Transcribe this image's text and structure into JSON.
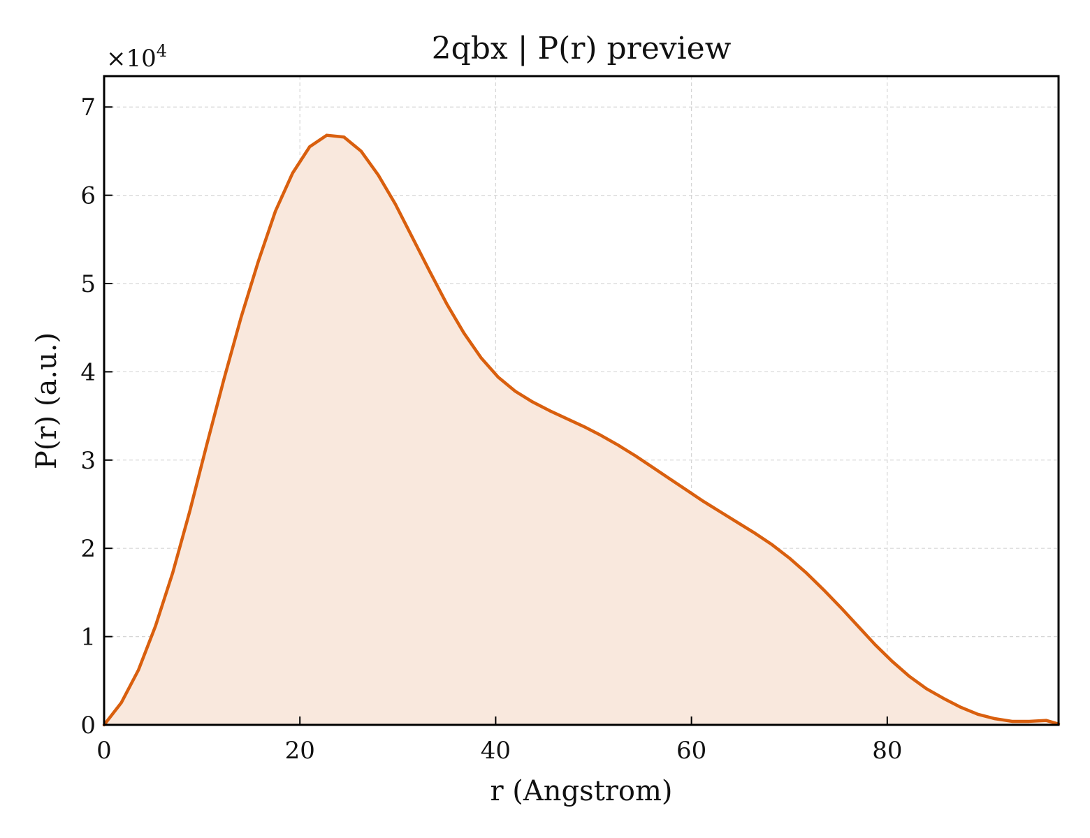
{
  "chart_data": {
    "type": "area",
    "title": "2qbx | P(r) preview",
    "xlabel": "r (Angstrom)",
    "ylabel": "P(r) (a.u.)",
    "y_multiplier": {
      "base": "×10",
      "exponent": "4"
    },
    "xlim": [
      0,
      97.5
    ],
    "ylim": [
      0,
      7.35
    ],
    "x_ticks": [
      0,
      20,
      40,
      60,
      80
    ],
    "x_tick_labels": [
      "0",
      "20",
      "40",
      "60",
      "80"
    ],
    "y_ticks": [
      0,
      1,
      2,
      3,
      4,
      5,
      6,
      7
    ],
    "y_tick_labels": [
      "0",
      "1",
      "2",
      "3",
      "4",
      "5",
      "6",
      "7"
    ],
    "grid": true,
    "line_color": "#d95f0e",
    "fill_color": "#f9e8dd",
    "series": [
      {
        "x": [
          0,
          1.75,
          3.5,
          5.25,
          7.0,
          8.75,
          10.5,
          12.25,
          14.0,
          15.75,
          17.5,
          19.25,
          21.0,
          22.75,
          24.5,
          26.25,
          28.0,
          29.75,
          31.5,
          33.25,
          35.0,
          36.75,
          38.5,
          40.25,
          42.0,
          43.75,
          45.5,
          47.25,
          49.0,
          50.75,
          52.5,
          54.25,
          56.0,
          57.75,
          59.5,
          61.25,
          63.0,
          64.75,
          66.5,
          68.25,
          70.0,
          71.75,
          73.5,
          75.25,
          77.0,
          78.75,
          80.5,
          82.25,
          84.0,
          85.75,
          87.5,
          89.25,
          91.0,
          92.75,
          94.5,
          96.25,
          97.5
        ],
        "y": [
          0.0,
          0.25,
          0.62,
          1.12,
          1.72,
          2.42,
          3.18,
          3.92,
          4.62,
          5.25,
          5.82,
          6.25,
          6.55,
          6.68,
          6.66,
          6.5,
          6.23,
          5.9,
          5.52,
          5.14,
          4.77,
          4.44,
          4.16,
          3.94,
          3.78,
          3.66,
          3.56,
          3.47,
          3.38,
          3.28,
          3.17,
          3.05,
          2.92,
          2.79,
          2.66,
          2.53,
          2.41,
          2.29,
          2.17,
          2.04,
          1.89,
          1.72,
          1.53,
          1.33,
          1.12,
          0.91,
          0.72,
          0.55,
          0.41,
          0.3,
          0.2,
          0.12,
          0.07,
          0.04,
          0.04,
          0.05,
          0.01
        ]
      }
    ]
  }
}
